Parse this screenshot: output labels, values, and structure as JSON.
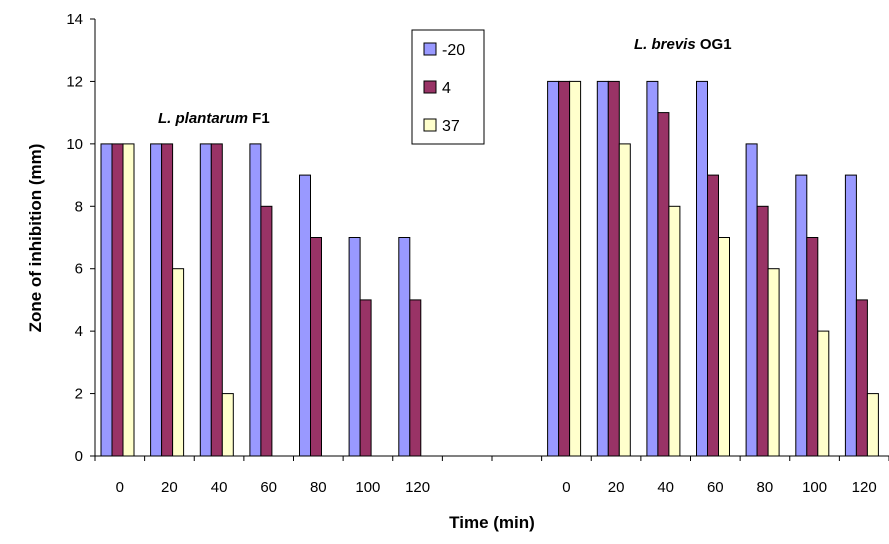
{
  "chart_data": {
    "type": "bar",
    "xlabel": "Time (min)",
    "ylabel": "Zone of inhibition (mm)",
    "ylim": [
      0,
      14
    ],
    "yticks": [
      0,
      2,
      4,
      6,
      8,
      10,
      12,
      14
    ],
    "grid": false,
    "legend": {
      "placement": "top-center",
      "entries": [
        "-20",
        "4",
        "37"
      ]
    },
    "colors": {
      "series_fill": [
        "#9999ff",
        "#993366",
        "#ffffcc"
      ],
      "bar_outline": "#000000"
    },
    "categories": [
      "0",
      "20",
      "40",
      "60",
      "80",
      "100",
      "120",
      "",
      "",
      "0",
      "20",
      "40",
      "60",
      "80",
      "100",
      "120"
    ],
    "series": [
      {
        "name": "-20",
        "values": [
          10,
          10,
          10,
          10,
          9,
          7,
          7,
          null,
          null,
          12,
          12,
          12,
          12,
          10,
          9,
          9
        ]
      },
      {
        "name": "4",
        "values": [
          10,
          10,
          10,
          8,
          7,
          5,
          5,
          null,
          null,
          12,
          12,
          11,
          9,
          8,
          7,
          5
        ]
      },
      {
        "name": "37",
        "values": [
          10,
          6,
          2,
          0,
          0,
          0,
          0,
          null,
          null,
          12,
          10,
          8,
          7,
          6,
          4,
          2
        ]
      }
    ],
    "annotations": [
      {
        "italic": "L. plantarum",
        "normal": " F1"
      },
      {
        "italic": "L. brevis",
        "normal": " OG1"
      }
    ]
  }
}
